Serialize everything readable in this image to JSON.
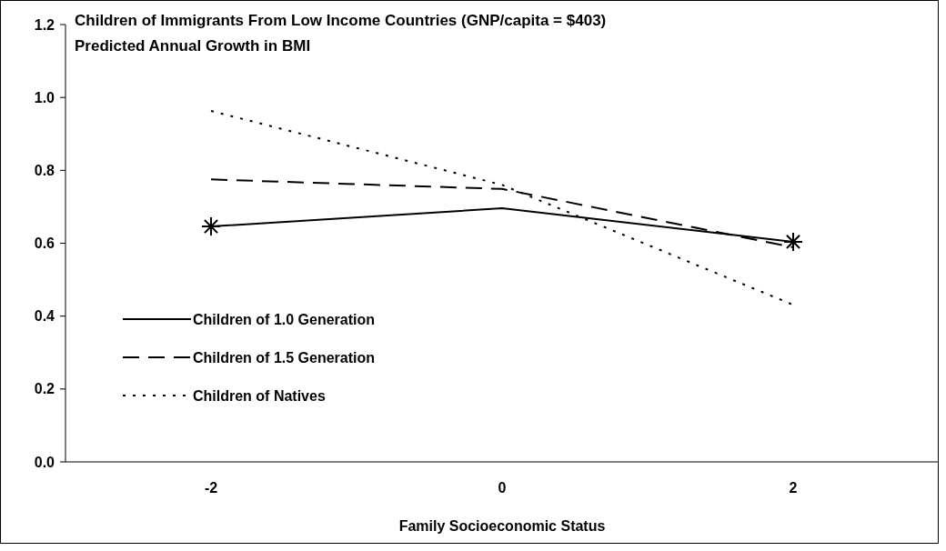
{
  "chart_data": {
    "type": "line",
    "title": "Children of Immigrants From Low Income Countries (GNP/capita = $403)",
    "subtitle": "Predicted Annual Growth in BMI",
    "xlabel": "Family Socioeconomic Status",
    "categories": [
      "-2",
      "0",
      "2"
    ],
    "ylim": [
      0,
      1.2
    ],
    "yticks": [
      {
        "value": 0,
        "label": "0.0"
      },
      {
        "value": 0.2,
        "label": "0.2"
      },
      {
        "value": 0.4,
        "label": "0.4"
      },
      {
        "value": 0.6,
        "label": "0.6"
      },
      {
        "value": 0.8,
        "label": "0.8"
      },
      {
        "value": 1,
        "label": "1.0"
      },
      {
        "value": 1.2,
        "label": "1.2"
      }
    ],
    "grid": false,
    "legend": "bottom left",
    "series": [
      {
        "name": "Children of 1.0 Generation",
        "color": "#000000",
        "line_style": "solid",
        "values": [
          0.646,
          0.696,
          0.604
        ]
      },
      {
        "name": "Children of 1.5 Generation",
        "color": "#000000",
        "line_style": "dashed",
        "values": [
          0.775,
          0.749,
          0.589
        ]
      },
      {
        "name": "Children of Natives",
        "color": "#000000",
        "line_style": "dotted",
        "values": [
          0.963,
          0.76,
          0.431
        ]
      },
      {
        "type": "scatter",
        "color": "#000000",
        "marker": "cross",
        "x": [
          "-2",
          "2"
        ],
        "values": [
          0.646,
          0.604
        ]
      }
    ]
  }
}
